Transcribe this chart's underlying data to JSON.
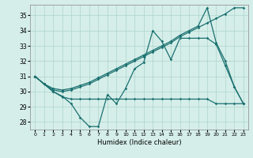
{
  "xlabel": "Humidex (Indice chaleur)",
  "xlim": [
    -0.5,
    23.5
  ],
  "ylim": [
    27.5,
    35.7
  ],
  "yticks": [
    28,
    29,
    30,
    31,
    32,
    33,
    34,
    35
  ],
  "xticks": [
    0,
    1,
    2,
    3,
    4,
    5,
    6,
    7,
    8,
    9,
    10,
    11,
    12,
    13,
    14,
    15,
    16,
    17,
    18,
    19,
    20,
    21,
    22,
    23
  ],
  "bg_color": "#d5eee9",
  "grid_color": "#aed4cc",
  "line_color": "#1a7070",
  "series1": [
    31.0,
    30.5,
    30.0,
    29.7,
    29.2,
    28.3,
    27.7,
    27.7,
    29.8,
    29.2,
    30.2,
    31.5,
    31.9,
    34.0,
    33.3,
    32.1,
    33.5,
    33.5,
    33.5,
    33.5,
    33.1,
    31.7,
    30.3,
    29.2
  ],
  "series2": [
    31.0,
    30.5,
    30.0,
    29.65,
    29.5,
    29.5,
    29.5,
    29.5,
    29.5,
    29.5,
    29.5,
    29.5,
    29.5,
    29.5,
    29.5,
    29.5,
    29.5,
    29.5,
    29.5,
    29.5,
    29.2,
    29.2,
    29.2,
    29.2
  ],
  "series3": [
    31.0,
    30.5,
    30.2,
    30.1,
    30.2,
    30.4,
    30.6,
    30.9,
    31.2,
    31.5,
    31.8,
    32.1,
    32.4,
    32.7,
    33.0,
    33.3,
    33.7,
    34.0,
    34.3,
    35.5,
    33.2,
    32.0,
    30.3,
    29.2
  ],
  "series4": [
    31.0,
    30.5,
    30.1,
    30.0,
    30.1,
    30.3,
    30.5,
    30.8,
    31.1,
    31.4,
    31.7,
    32.0,
    32.3,
    32.6,
    32.9,
    33.2,
    33.6,
    33.9,
    34.2,
    34.5,
    34.8,
    35.1,
    35.5,
    35.5
  ]
}
